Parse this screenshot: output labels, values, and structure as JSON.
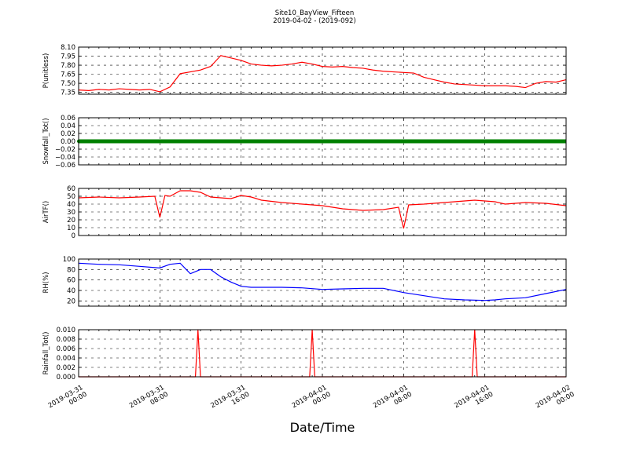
{
  "figure": {
    "title_line1": "Site10_BayView_Fifteen",
    "title_line2": "2019-04-02 - (2019-092)",
    "xlabel": "Date/Time"
  },
  "chart_data": [
    {
      "type": "line",
      "ylabel": "P(unitless)",
      "ylim": [
        7.32,
        8.1
      ],
      "yticks": [
        "7.35",
        "7.50",
        "7.65",
        "7.80",
        "7.95",
        "8.10"
      ],
      "ytick_values": [
        7.35,
        7.5,
        7.65,
        7.8,
        7.95,
        8.1
      ],
      "xlim": [
        "2019-03-31 00:00",
        "2019-04-02 00:00"
      ],
      "grid": true,
      "series": [
        {
          "color": "#ff0000",
          "x": [
            "2019-03-31 00:00",
            "2019-03-31 01:00",
            "2019-03-31 02:00",
            "2019-03-31 03:00",
            "2019-03-31 04:00",
            "2019-03-31 05:00",
            "2019-03-31 06:00",
            "2019-03-31 07:00",
            "2019-03-31 08:00",
            "2019-03-31 09:00",
            "2019-03-31 10:00",
            "2019-03-31 11:00",
            "2019-03-31 12:00",
            "2019-03-31 13:00",
            "2019-03-31 14:00",
            "2019-03-31 15:00",
            "2019-03-31 16:00",
            "2019-03-31 17:00",
            "2019-03-31 18:00",
            "2019-03-31 19:00",
            "2019-03-31 20:00",
            "2019-03-31 21:00",
            "2019-03-31 22:00",
            "2019-03-31 23:00",
            "2019-04-01 00:00",
            "2019-04-01 01:00",
            "2019-04-01 02:00",
            "2019-04-01 03:00",
            "2019-04-01 04:00",
            "2019-04-01 05:00",
            "2019-04-01 06:00",
            "2019-04-01 07:00",
            "2019-04-01 08:00",
            "2019-04-01 09:00",
            "2019-04-01 10:00",
            "2019-04-01 11:00",
            "2019-04-01 12:00",
            "2019-04-01 13:00",
            "2019-04-01 14:00",
            "2019-04-01 15:00",
            "2019-04-01 16:00",
            "2019-04-01 17:00",
            "2019-04-01 18:00",
            "2019-04-01 19:00",
            "2019-04-01 20:00",
            "2019-04-01 21:00",
            "2019-04-01 22:00",
            "2019-04-01 23:00",
            "2019-04-02 00:00"
          ],
          "y": [
            7.39,
            7.38,
            7.4,
            7.39,
            7.41,
            7.4,
            7.39,
            7.4,
            7.36,
            7.44,
            7.66,
            7.69,
            7.72,
            7.78,
            7.96,
            7.92,
            7.88,
            7.82,
            7.8,
            7.79,
            7.8,
            7.82,
            7.85,
            7.82,
            7.78,
            7.77,
            7.78,
            7.76,
            7.75,
            7.72,
            7.7,
            7.69,
            7.68,
            7.67,
            7.6,
            7.56,
            7.52,
            7.49,
            7.48,
            7.47,
            7.46,
            7.46,
            7.46,
            7.45,
            7.43,
            7.5,
            7.53,
            7.52,
            7.56
          ]
        }
      ]
    },
    {
      "type": "line",
      "ylabel": "Snowfall_Tot()",
      "ylim": [
        -0.06,
        0.06
      ],
      "yticks": [
        "−0.06",
        "−0.04",
        "−0.02",
        "0.00",
        "0.02",
        "0.04",
        "0.06"
      ],
      "ytick_values": [
        -0.06,
        -0.04,
        -0.02,
        0.0,
        0.02,
        0.04,
        0.06
      ],
      "xlim": [
        "2019-03-31 00:00",
        "2019-04-02 00:00"
      ],
      "grid": true,
      "series": [
        {
          "color": "#008000",
          "marker": true,
          "x": [
            "2019-03-31 00:00",
            "2019-04-02 00:00"
          ],
          "y": [
            0.0,
            0.0
          ]
        }
      ]
    },
    {
      "type": "line",
      "ylabel": "AirTF()",
      "ylim": [
        0,
        60
      ],
      "yticks": [
        "0",
        "10",
        "20",
        "30",
        "40",
        "50",
        "60"
      ],
      "ytick_values": [
        0,
        10,
        20,
        30,
        40,
        50,
        60
      ],
      "xlim": [
        "2019-03-31 00:00",
        "2019-04-02 00:00"
      ],
      "grid": true,
      "series": [
        {
          "color": "#ff0000",
          "x": [
            "2019-03-31 00:00",
            "2019-03-31 02:00",
            "2019-03-31 04:00",
            "2019-03-31 06:00",
            "2019-03-31 07:30",
            "2019-03-31 08:00",
            "2019-03-31 08:30",
            "2019-03-31 09:00",
            "2019-03-31 10:00",
            "2019-03-31 11:00",
            "2019-03-31 12:00",
            "2019-03-31 13:00",
            "2019-03-31 14:00",
            "2019-03-31 15:00",
            "2019-03-31 16:00",
            "2019-03-31 17:00",
            "2019-03-31 18:00",
            "2019-03-31 20:00",
            "2019-03-31 22:00",
            "2019-04-01 00:00",
            "2019-04-01 02:00",
            "2019-04-01 04:00",
            "2019-04-01 06:00",
            "2019-04-01 07:30",
            "2019-04-01 08:00",
            "2019-04-01 08:30",
            "2019-04-01 10:00",
            "2019-04-01 12:00",
            "2019-04-01 14:00",
            "2019-04-01 15:00",
            "2019-04-01 16:00",
            "2019-04-01 17:00",
            "2019-04-01 18:00",
            "2019-04-01 20:00",
            "2019-04-01 22:00",
            "2019-04-02 00:00"
          ],
          "y": [
            48,
            49,
            48,
            49,
            50,
            23,
            51,
            50,
            57,
            57,
            55,
            49,
            48,
            47,
            51,
            49,
            45,
            42,
            40,
            38,
            34,
            32,
            33,
            36,
            9,
            39,
            40,
            42,
            44,
            45,
            44,
            43,
            40,
            42,
            41,
            38
          ]
        }
      ]
    },
    {
      "type": "line",
      "ylabel": "RH(%)",
      "ylim": [
        10,
        100
      ],
      "yticks": [
        "20",
        "40",
        "60",
        "80",
        "100"
      ],
      "ytick_values": [
        20,
        40,
        60,
        80,
        100
      ],
      "xlim": [
        "2019-03-31 00:00",
        "2019-04-02 00:00"
      ],
      "grid": true,
      "series": [
        {
          "color": "#0000ff",
          "x": [
            "2019-03-31 00:00",
            "2019-03-31 02:00",
            "2019-03-31 04:00",
            "2019-03-31 06:00",
            "2019-03-31 08:00",
            "2019-03-31 09:00",
            "2019-03-31 10:00",
            "2019-03-31 11:00",
            "2019-03-31 12:00",
            "2019-03-31 13:00",
            "2019-03-31 14:00",
            "2019-03-31 15:00",
            "2019-03-31 16:00",
            "2019-03-31 17:00",
            "2019-03-31 18:00",
            "2019-03-31 20:00",
            "2019-03-31 22:00",
            "2019-04-01 00:00",
            "2019-04-01 02:00",
            "2019-04-01 04:00",
            "2019-04-01 06:00",
            "2019-04-01 08:00",
            "2019-04-01 10:00",
            "2019-04-01 12:00",
            "2019-04-01 14:00",
            "2019-04-01 16:00",
            "2019-04-01 17:00",
            "2019-04-01 18:00",
            "2019-04-01 20:00",
            "2019-04-01 22:00",
            "2019-04-02 00:00"
          ],
          "y": [
            92,
            90,
            89,
            86,
            83,
            90,
            92,
            72,
            80,
            80,
            66,
            56,
            48,
            46,
            46,
            46,
            45,
            42,
            43,
            44,
            44,
            36,
            30,
            24,
            22,
            21,
            22,
            24,
            26,
            34,
            42
          ]
        }
      ]
    },
    {
      "type": "line",
      "ylabel": "Rainfall_Tot()",
      "ylim": [
        0,
        0.01
      ],
      "yticks": [
        "0.000",
        "0.002",
        "0.004",
        "0.006",
        "0.008",
        "0.010"
      ],
      "ytick_values": [
        0.0,
        0.002,
        0.004,
        0.006,
        0.008,
        0.01
      ],
      "xlim": [
        "2019-03-31 00:00",
        "2019-04-02 00:00"
      ],
      "xticks": [
        [
          "2019-03-31",
          "00:00"
        ],
        [
          "2019-03-31",
          "08:00"
        ],
        [
          "2019-03-31",
          "16:00"
        ],
        [
          "2019-04-01",
          "00:00"
        ],
        [
          "2019-04-01",
          "08:00"
        ],
        [
          "2019-04-01",
          "16:00"
        ],
        [
          "2019-04-02",
          "00:00"
        ]
      ],
      "grid": true,
      "series": [
        {
          "color": "#ff0000",
          "x": [
            "2019-03-31 00:00",
            "2019-03-31 11:30",
            "2019-03-31 11:45",
            "2019-03-31 12:00",
            "2019-03-31 22:45",
            "2019-03-31 23:00",
            "2019-03-31 23:15",
            "2019-04-01 14:45",
            "2019-04-01 15:00",
            "2019-04-01 15:15",
            "2019-04-02 00:00"
          ],
          "y": [
            0,
            0,
            0.01,
            0,
            0,
            0.01,
            0,
            0,
            0.01,
            0,
            0
          ]
        }
      ]
    }
  ]
}
